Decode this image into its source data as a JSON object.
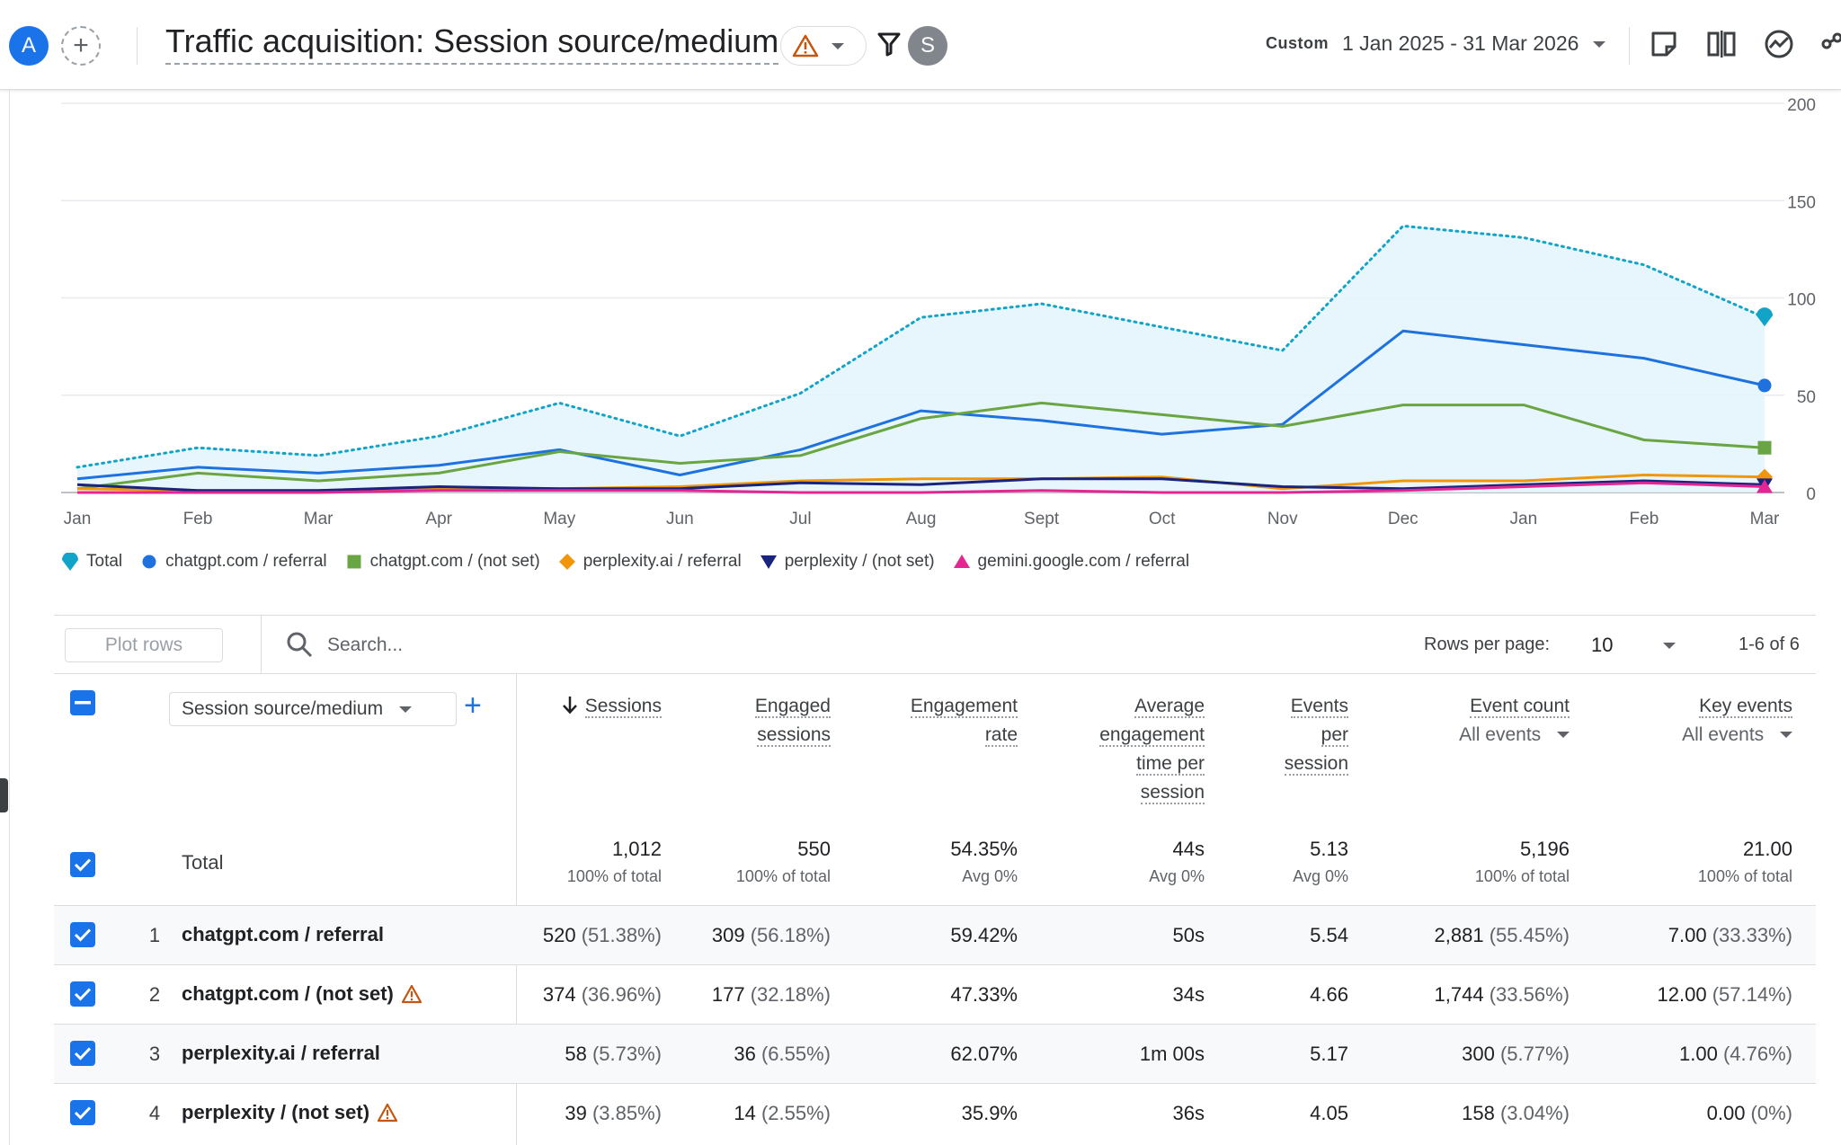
{
  "header": {
    "avatar_letter": "A",
    "add_compare": "+",
    "title": "Traffic acquisition: Session source/medium",
    "user_initial": "S",
    "date_label": "Custom",
    "date_range": "1 Jan 2025 - 31 Mar 2026"
  },
  "chart_data": {
    "type": "line",
    "categories": [
      "Jan",
      "Feb",
      "Mar",
      "Apr",
      "May",
      "Jun",
      "Jul",
      "Aug",
      "Sept",
      "Oct",
      "Nov",
      "Dec",
      "Jan",
      "Feb",
      "Mar"
    ],
    "ylim": [
      0,
      200
    ],
    "yticks": [
      "0",
      "50",
      "100",
      "150",
      "200"
    ],
    "y_axis_position": "right",
    "grid": true,
    "legend_position": "bottom-left",
    "series": [
      {
        "name": "Total",
        "color": "#12a4c8",
        "style": "dotted-area",
        "marker": "pin",
        "values": [
          13,
          23,
          19,
          29,
          46,
          29,
          51,
          90,
          97,
          85,
          73,
          137,
          131,
          117,
          90
        ]
      },
      {
        "name": "chatgpt.com / referral",
        "color": "#1e72e0",
        "style": "solid",
        "marker": "circle",
        "values": [
          7,
          13,
          10,
          14,
          22,
          9,
          22,
          42,
          37,
          30,
          35,
          83,
          76,
          69,
          55
        ]
      },
      {
        "name": "chatgpt.com / (not set)",
        "color": "#6aa544",
        "style": "solid",
        "marker": "square",
        "values": [
          2,
          10,
          6,
          10,
          21,
          15,
          19,
          38,
          46,
          40,
          34,
          45,
          45,
          27,
          23
        ]
      },
      {
        "name": "perplexity.ai / referral",
        "color": "#f0960b",
        "style": "solid",
        "marker": "diamond",
        "values": [
          2,
          1,
          1,
          2,
          2,
          3,
          6,
          7,
          7,
          8,
          2,
          6,
          6,
          9,
          8
        ]
      },
      {
        "name": "perplexity / (not set)",
        "color": "#1a237e",
        "style": "solid",
        "marker": "triangle-down",
        "values": [
          4,
          1,
          1,
          3,
          2,
          2,
          5,
          4,
          7,
          7,
          3,
          2,
          4,
          6,
          4
        ]
      },
      {
        "name": "gemini.google.com / referral",
        "color": "#e52592",
        "style": "solid",
        "marker": "triangle-up",
        "values": [
          0,
          0,
          0,
          1,
          1,
          1,
          0,
          0,
          1,
          0,
          0,
          1,
          3,
          5,
          3
        ]
      }
    ]
  },
  "toolbar": {
    "plot_rows": "Plot rows",
    "search_placeholder": "Search...",
    "rows_per_page_label": "Rows per page:",
    "rows_per_page": "10",
    "pagination": "1-6 of 6"
  },
  "table": {
    "dimension": "Session source/medium",
    "add_dimension": "+",
    "columns": [
      {
        "lines": [
          "Sessions"
        ]
      },
      {
        "lines": [
          "Engaged",
          "sessions"
        ]
      },
      {
        "lines": [
          "Engagement",
          "rate"
        ]
      },
      {
        "lines": [
          "Average",
          "engagement",
          "time per",
          "session"
        ]
      },
      {
        "lines": [
          "Events",
          "per",
          "session"
        ]
      },
      {
        "lines": [
          "Event count"
        ],
        "sub": "All events"
      },
      {
        "lines": [
          "Key events"
        ],
        "sub": "All events"
      }
    ],
    "totals_label": "Total",
    "totals": [
      {
        "value": "1,012",
        "pct": "100% of total"
      },
      {
        "value": "550",
        "pct": "100% of total"
      },
      {
        "value": "54.35%",
        "pct": "Avg 0%"
      },
      {
        "value": "44s",
        "pct": "Avg 0%"
      },
      {
        "value": "5.13",
        "pct": "Avg 0%"
      },
      {
        "value": "5,196",
        "pct": "100% of total"
      },
      {
        "value": "21.00",
        "pct": "100% of total"
      }
    ],
    "rows": [
      {
        "num": "1",
        "dim": "chatgpt.com / referral",
        "warn": false,
        "cells": [
          [
            "520",
            "(51.38%)"
          ],
          [
            "309",
            "(56.18%)"
          ],
          [
            "59.42%",
            ""
          ],
          [
            "50s",
            ""
          ],
          [
            "5.54",
            ""
          ],
          [
            "2,881",
            "(55.45%)"
          ],
          [
            "7.00",
            "(33.33%)"
          ]
        ]
      },
      {
        "num": "2",
        "dim": "chatgpt.com / (not set)",
        "warn": true,
        "cells": [
          [
            "374",
            "(36.96%)"
          ],
          [
            "177",
            "(32.18%)"
          ],
          [
            "47.33%",
            ""
          ],
          [
            "34s",
            ""
          ],
          [
            "4.66",
            ""
          ],
          [
            "1,744",
            "(33.56%)"
          ],
          [
            "12.00",
            "(57.14%)"
          ]
        ]
      },
      {
        "num": "3",
        "dim": "perplexity.ai / referral",
        "warn": false,
        "cells": [
          [
            "58",
            "(5.73%)"
          ],
          [
            "36",
            "(6.55%)"
          ],
          [
            "62.07%",
            ""
          ],
          [
            "1m 00s",
            ""
          ],
          [
            "5.17",
            ""
          ],
          [
            "300",
            "(5.77%)"
          ],
          [
            "1.00",
            "(4.76%)"
          ]
        ]
      },
      {
        "num": "4",
        "dim": "perplexity / (not set)",
        "warn": true,
        "cells": [
          [
            "39",
            "(3.85%)"
          ],
          [
            "14",
            "(2.55%)"
          ],
          [
            "35.9%",
            ""
          ],
          [
            "36s",
            ""
          ],
          [
            "4.05",
            ""
          ],
          [
            "158",
            "(3.04%)"
          ],
          [
            "0.00",
            "(0%)"
          ]
        ]
      }
    ]
  }
}
